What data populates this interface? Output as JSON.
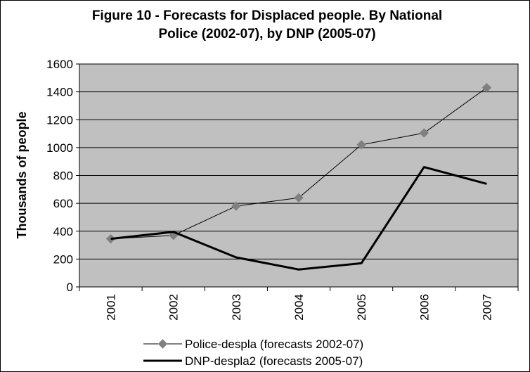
{
  "chart_data": {
    "type": "line",
    "title_lines": [
      "Figure 10 - Forecasts for Displaced people. By National",
      "Police (2002-07), by DNP (2005-07)"
    ],
    "xlabel": "",
    "ylabel": "Thousands of people",
    "categories": [
      "2001",
      "2002",
      "2003",
      "2004",
      "2005",
      "2006",
      "2007"
    ],
    "ylim": [
      0,
      1600
    ],
    "yticks": [
      0,
      200,
      400,
      600,
      800,
      1000,
      1200,
      1400,
      1600
    ],
    "grid": true,
    "legend_position": "bottom",
    "plot_background": "#c0c0c0",
    "series": [
      {
        "name": "Police-despla (forecasts 2002-07)",
        "values": [
          345,
          370,
          580,
          640,
          1020,
          1105,
          1430
        ],
        "color": "#000000",
        "marker": "diamond",
        "marker_color": "#808080",
        "line_style": "thin"
      },
      {
        "name": "DNP-despla2 (forecasts 2005-07)",
        "values": [
          345,
          395,
          212,
          125,
          170,
          860,
          740
        ],
        "color": "#000000",
        "marker": "none",
        "line_style": "thick"
      }
    ]
  }
}
